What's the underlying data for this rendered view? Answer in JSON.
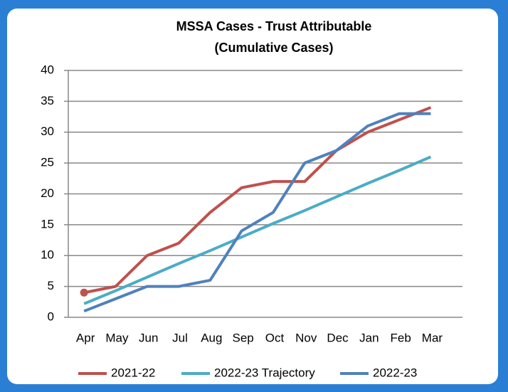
{
  "chart_data": {
    "type": "line",
    "title": "MSSA Cases - Trust Attributable",
    "subtitle": "(Cumulative Cases)",
    "categories": [
      "Apr",
      "May",
      "Jun",
      "Jul",
      "Aug",
      "Sep",
      "Oct",
      "Nov",
      "Dec",
      "Jan",
      "Feb",
      "Mar"
    ],
    "series": [
      {
        "name": "2021-22",
        "color": "#c0504d",
        "values": [
          4,
          5,
          10,
          12,
          17,
          21,
          22,
          22,
          27,
          30,
          32,
          34
        ]
      },
      {
        "name": "2022-23 Trajectory",
        "color": "#4bacc6",
        "values": [
          2.2,
          4.3,
          6.5,
          8.7,
          10.8,
          13,
          15.2,
          17.3,
          19.5,
          21.7,
          23.8,
          26
        ]
      },
      {
        "name": "2022-23",
        "color": "#4f81bd",
        "values": [
          1,
          3,
          5,
          5,
          6,
          14,
          17,
          25,
          27,
          31,
          33,
          33
        ]
      }
    ],
    "ylim": [
      0,
      40
    ],
    "yticks": [
      0,
      5,
      10,
      15,
      20,
      25,
      30,
      35,
      40
    ],
    "grid": true,
    "legend": "bottom"
  }
}
